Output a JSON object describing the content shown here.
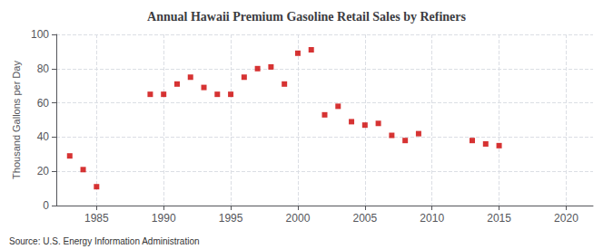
{
  "chart_data": {
    "type": "scatter",
    "title": "Annual Hawaii Premium Gasoline Retail Sales by Refiners",
    "ylabel": "Thousand Gallons per Day",
    "annotation": "Source: U.S. Energy Information Administration",
    "x": [
      1983,
      1984,
      1985,
      1989,
      1990,
      1991,
      1992,
      1993,
      1994,
      1995,
      1996,
      1997,
      1998,
      1999,
      2000,
      2001,
      2002,
      2003,
      2004,
      2005,
      2006,
      2007,
      2008,
      2009,
      2013,
      2014,
      2015
    ],
    "values": [
      29,
      21,
      11,
      65,
      65,
      71,
      75,
      69,
      65,
      65,
      75,
      80,
      81,
      71,
      89,
      91,
      53,
      58,
      49,
      47,
      48,
      41,
      38,
      42,
      38,
      36,
      35
    ],
    "color": "#cc0000",
    "marker": "square",
    "xlim": [
      1982,
      2022
    ],
    "ylim": [
      0,
      100
    ],
    "xticks": [
      1985,
      1990,
      1995,
      2000,
      2005,
      2010,
      2015,
      2020
    ],
    "yticks": [
      0,
      20,
      40,
      60,
      80,
      100
    ],
    "grid": true
  }
}
